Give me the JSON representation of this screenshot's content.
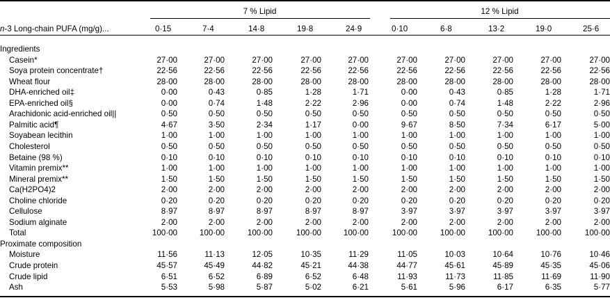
{
  "table": {
    "stub_header_italic": "n",
    "stub_header": "-3 Long-chain PUFA (mg/g)...",
    "groups": [
      "7 % Lipid",
      "12 % Lipid"
    ],
    "columns": [
      "0·15",
      "7·4",
      "14·8",
      "19·8",
      "24·9",
      "0·10",
      "6·8",
      "13·2",
      "19·0",
      "25·6"
    ],
    "rows": [
      {
        "label": "Ingredients",
        "section": true,
        "values": []
      },
      {
        "label": "Casein*",
        "values": [
          "27·00",
          "27·00",
          "27·00",
          "27·00",
          "27·00",
          "27·00",
          "27·00",
          "27·00",
          "27·00",
          "27·00"
        ]
      },
      {
        "label": "Soya protein concentrate†",
        "values": [
          "22·56",
          "22·56",
          "22·56",
          "22·56",
          "22·56",
          "22·56",
          "22·56",
          "22·56",
          "22·56",
          "22·56"
        ]
      },
      {
        "label": "Wheat flour",
        "values": [
          "28·00",
          "28·00",
          "28·00",
          "28·00",
          "28·00",
          "28·00",
          "28·00",
          "28·00",
          "28·00",
          "28·00"
        ]
      },
      {
        "label": "DHA-enriched oil‡",
        "values": [
          "0·00",
          "0·43",
          "0·85",
          "1·28",
          "1·71",
          "0·00",
          "0·43",
          "0·85",
          "1·28",
          "1·71"
        ]
      },
      {
        "label": "EPA-enriched oil§",
        "values": [
          "0·00",
          "0·74",
          "1·48",
          "2·22",
          "2·96",
          "0·00",
          "0·74",
          "1·48",
          "2·22",
          "2·96"
        ]
      },
      {
        "label": "Arachidonic acid-enriched oil||",
        "values": [
          "0·50",
          "0·50",
          "0·50",
          "0·50",
          "0·50",
          "0·50",
          "0·50",
          "0·50",
          "0·50",
          "0·50"
        ]
      },
      {
        "label": "Palmitic acid¶",
        "values": [
          "4·67",
          "3·50",
          "2·34",
          "1·17",
          "0·00",
          "9·67",
          "8·50",
          "7·34",
          "6·17",
          "5·00"
        ]
      },
      {
        "label": "Soyabean lecithin",
        "values": [
          "1·00",
          "1·00",
          "1·00",
          "1·00",
          "1·00",
          "1·00",
          "1·00",
          "1·00",
          "1·00",
          "1·00"
        ]
      },
      {
        "label": "Cholesterol",
        "values": [
          "0·50",
          "0·50",
          "0·50",
          "0·50",
          "0·50",
          "0·50",
          "0·50",
          "0·50",
          "0·50",
          "0·50"
        ]
      },
      {
        "label": "Betaine (98 %)",
        "values": [
          "0·10",
          "0·10",
          "0·10",
          "0·10",
          "0·10",
          "0·10",
          "0·10",
          "0·10",
          "0·10",
          "0·10"
        ]
      },
      {
        "label": "Vitamin premix**",
        "values": [
          "1·00",
          "1·00",
          "1·00",
          "1·00",
          "1·00",
          "1·00",
          "1·00",
          "1·00",
          "1·00",
          "1·00"
        ]
      },
      {
        "label": "Mineral premix**",
        "values": [
          "1·50",
          "1·50",
          "1·50",
          "1·50",
          "1·50",
          "1·50",
          "1·50",
          "1·50",
          "1·50",
          "1·50"
        ]
      },
      {
        "label": "Ca(H2PO4)2",
        "formula": true,
        "values": [
          "2·00",
          "2·00",
          "2·00",
          "2·00",
          "2·00",
          "2·00",
          "2·00",
          "2·00",
          "2·00",
          "2·00"
        ]
      },
      {
        "label": "Choline chloride",
        "values": [
          "0·20",
          "0·20",
          "0·20",
          "0·20",
          "0·20",
          "0·20",
          "0·20",
          "0·20",
          "0·20",
          "0·20"
        ]
      },
      {
        "label": "Cellulose",
        "values": [
          "8·97",
          "8·97",
          "8·97",
          "8·97",
          "8·97",
          "3·97",
          "3·97",
          "3·97",
          "3·97",
          "3·97"
        ]
      },
      {
        "label": "Sodium alginate",
        "values": [
          "2·00",
          "2·00",
          "2·00",
          "2·00",
          "2·00",
          "2·00",
          "2·00",
          "2·00",
          "2·00",
          "2·00"
        ]
      },
      {
        "label": "Total",
        "values": [
          "100·00",
          "100·00",
          "100·00",
          "100·00",
          "100·00",
          "100·00",
          "100·00",
          "100·00",
          "100·00",
          "100·00"
        ]
      },
      {
        "label": "Proximate composition",
        "section": true,
        "values": []
      },
      {
        "label": "Moisture",
        "values": [
          "11·56",
          "11·13",
          "12·05",
          "10·35",
          "11·29",
          "11·05",
          "10·03",
          "10·64",
          "10·76",
          "10·46"
        ]
      },
      {
        "label": "Crude protein",
        "values": [
          "45·57",
          "45·49",
          "44·82",
          "45·21",
          "44·38",
          "44·77",
          "45·61",
          "45·89",
          "45·35",
          "45·06"
        ]
      },
      {
        "label": "Crude lipid",
        "values": [
          "6·51",
          "6·52",
          "6·89",
          "6·52",
          "6·48",
          "11·93",
          "11·73",
          "11·85",
          "11·69",
          "11·90"
        ]
      },
      {
        "label": "Ash",
        "values": [
          "5·53",
          "5·98",
          "5·87",
          "5·02",
          "6·21",
          "5·61",
          "5·96",
          "6·17",
          "6·35",
          "5·77"
        ]
      }
    ]
  }
}
